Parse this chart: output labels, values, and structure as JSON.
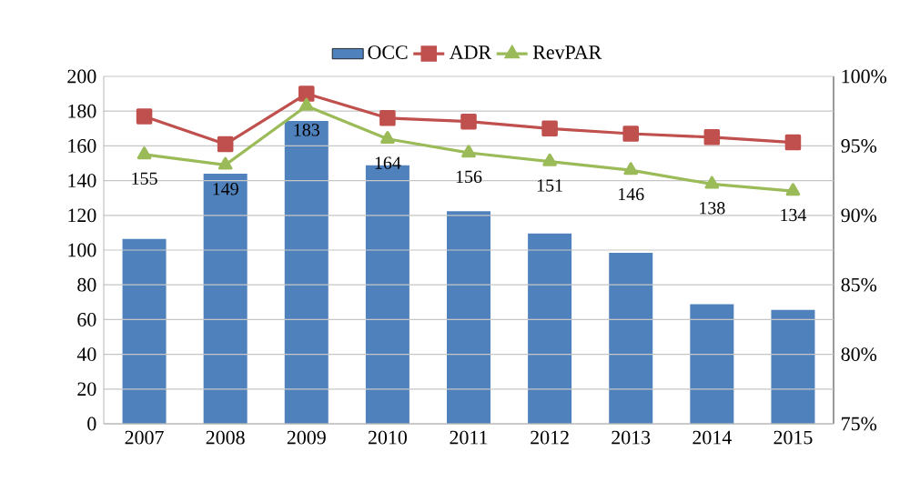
{
  "chart_data": {
    "type": "bar",
    "categories": [
      "2007",
      "2008",
      "2009",
      "2010",
      "2011",
      "2012",
      "2013",
      "2014",
      "2015"
    ],
    "series": [
      {
        "name": "OCC",
        "axis": "y2",
        "color": "#4f81bd",
        "values": [
          88.3,
          93.0,
          96.8,
          93.6,
          90.3,
          88.7,
          87.3,
          83.6,
          83.2
        ]
      },
      {
        "name": "ADR",
        "type": "line",
        "color": "#c0504d",
        "marker": "square",
        "values": [
          177,
          161,
          190,
          176,
          174,
          170,
          167,
          165,
          162
        ]
      },
      {
        "name": "RevPAR",
        "type": "line",
        "color": "#9bbb59",
        "marker": "triangle",
        "values": [
          155,
          149,
          183,
          164,
          156,
          151,
          146,
          138,
          134
        ],
        "value_labels": [
          "155",
          "149",
          "183",
          "164",
          "156",
          "151",
          "146",
          "138",
          "134"
        ]
      }
    ],
    "ylim": [
      0,
      200
    ],
    "yticks": [
      0,
      20,
      40,
      60,
      80,
      100,
      120,
      140,
      160,
      180,
      200
    ],
    "y2lim": [
      75,
      100
    ],
    "y2ticks": [
      {
        "value": 75,
        "label": "75%"
      },
      {
        "value": 80,
        "label": "80%"
      },
      {
        "value": 85,
        "label": "85%"
      },
      {
        "value": 90,
        "label": "90%"
      },
      {
        "value": 95,
        "label": "95%"
      },
      {
        "value": 100,
        "label": "100%"
      }
    ],
    "grid": "y",
    "legend": "top"
  }
}
